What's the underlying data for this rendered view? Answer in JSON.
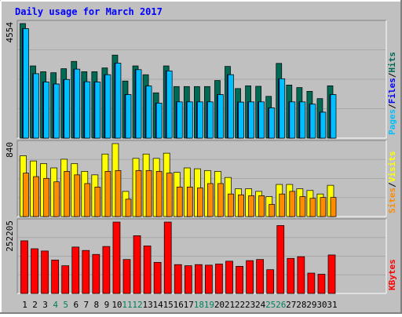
{
  "chart_data": [
    {
      "type": "bar",
      "title": "Daily usage for March 2017",
      "categories": [
        "1",
        "2",
        "3",
        "4",
        "5",
        "6",
        "7",
        "8",
        "9",
        "10",
        "11",
        "12",
        "13",
        "14",
        "15",
        "16",
        "17",
        "18",
        "19",
        "20",
        "21",
        "22",
        "23",
        "24",
        "25",
        "26",
        "27",
        "28",
        "29",
        "30",
        "31"
      ],
      "weekend_days": [
        "4",
        "5",
        "11",
        "12",
        "18",
        "19",
        "25",
        "26"
      ],
      "ylabel": "4554",
      "ylim": [
        0,
        4554
      ],
      "legend": [
        "Pages",
        "Files",
        "Hits"
      ],
      "legend_position": "right",
      "series": [
        {
          "name": "Hits",
          "color": "#006a55",
          "values": [
            4554,
            2870,
            2640,
            2600,
            2760,
            3050,
            2640,
            2640,
            2790,
            3300,
            2270,
            2870,
            2520,
            1800,
            2870,
            2050,
            2050,
            2050,
            2050,
            2290,
            2850,
            1970,
            2080,
            2060,
            1660,
            2970,
            2110,
            2010,
            1860,
            1570,
            2080
          ]
        },
        {
          "name": "Files",
          "color": "#0000ff",
          "values": [
            4350,
            2560,
            2230,
            2150,
            2330,
            2740,
            2240,
            2230,
            2520,
            2980,
            1730,
            2720,
            2070,
            1390,
            2670,
            1440,
            1440,
            1440,
            1440,
            1730,
            2520,
            1430,
            1440,
            1440,
            1200,
            2360,
            1440,
            1440,
            1350,
            1030,
            1730
          ]
        },
        {
          "name": "Pages",
          "color": "#00bfff",
          "values": [
            4350,
            2560,
            2230,
            2150,
            2330,
            2740,
            2240,
            2230,
            2520,
            2980,
            1730,
            2720,
            2070,
            1390,
            2670,
            1440,
            1440,
            1440,
            1440,
            1730,
            2520,
            1430,
            1440,
            1440,
            1200,
            2360,
            1440,
            1440,
            1350,
            1030,
            1730
          ]
        }
      ]
    },
    {
      "type": "bar",
      "ylabel": "840",
      "ylim": [
        0,
        840
      ],
      "legend": [
        "Sites",
        "Visits"
      ],
      "legend_position": "right",
      "series": [
        {
          "name": "Visits",
          "color": "#ffff00",
          "values": [
            700,
            640,
            610,
            560,
            660,
            610,
            520,
            480,
            720,
            840,
            290,
            670,
            720,
            670,
            730,
            510,
            560,
            550,
            530,
            520,
            450,
            320,
            320,
            290,
            230,
            370,
            370,
            320,
            300,
            260,
            360
          ]
        },
        {
          "name": "Sites",
          "color": "#ff8c00",
          "values": [
            500,
            460,
            440,
            400,
            520,
            480,
            380,
            340,
            520,
            530,
            200,
            530,
            530,
            520,
            500,
            340,
            340,
            330,
            380,
            380,
            260,
            250,
            240,
            240,
            140,
            260,
            290,
            230,
            210,
            220,
            220
          ]
        }
      ]
    },
    {
      "type": "bar",
      "ylabel": "252205",
      "ylim": [
        0,
        252205
      ],
      "legend": [
        "KBytes"
      ],
      "legend_position": "right",
      "series": [
        {
          "name": "KBytes",
          "color": "#ff0000",
          "values": [
            186000,
            158000,
            150000,
            118000,
            98000,
            164000,
            152000,
            138000,
            166000,
            252205,
            120000,
            204000,
            168000,
            110000,
            252205,
            102000,
            98000,
            102000,
            100000,
            104000,
            114000,
            96000,
            116000,
            120000,
            84000,
            240000,
            124000,
            130000,
            72000,
            68000,
            136000
          ]
        }
      ]
    }
  ],
  "colors": {
    "background": "#c0c0c0",
    "title": "#0000ff",
    "day_label": "#000080",
    "weekend_label": "#00805a",
    "border_dark": "#808080",
    "border_light": "#ffffff"
  }
}
